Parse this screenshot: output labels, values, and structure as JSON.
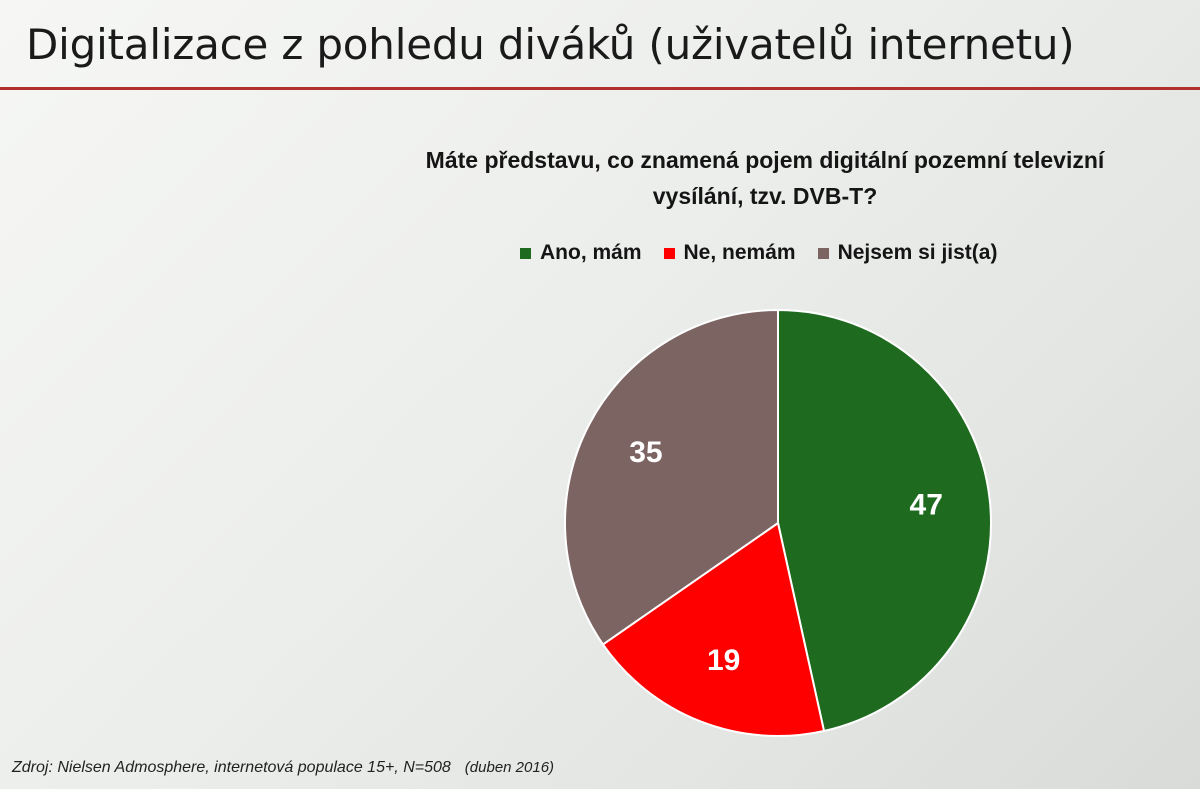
{
  "slide": {
    "title": "Digitalizace z pohledu diváků (uživatelů internetu)",
    "rule_color": "#b2302c"
  },
  "chart_data": {
    "type": "pie",
    "title_lines": [
      "Máte představu, co znamená pojem digitální pozemní televizní",
      "vysílání, tzv. DVB-T?"
    ],
    "categories": [
      "Ano, mám",
      "Ne, nemám",
      "Nejsem si jist(a)"
    ],
    "values": [
      47,
      19,
      35
    ],
    "colors": [
      "#1e6b1f",
      "#ff0000",
      "#7b6462"
    ],
    "data_labels": [
      "47",
      "19",
      "35"
    ],
    "start": "12 o'clock",
    "direction": "clockwise",
    "legend_position": "top"
  },
  "footer": {
    "source": "Zdroj: Nielsen Admosphere, internetová populace 15+, N=508",
    "date": "(duben 2016)"
  }
}
